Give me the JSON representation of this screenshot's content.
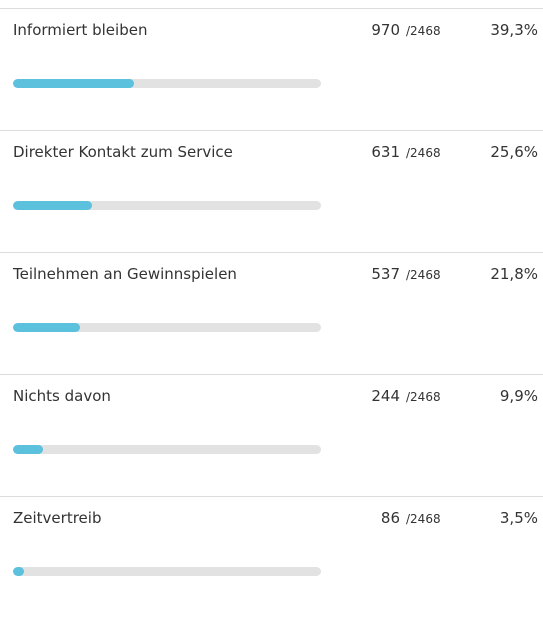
{
  "rows": [
    {
      "label": "Informiert bleiben",
      "count": 970,
      "total": {
        "value": 2468,
        "label": "/2468"
      },
      "percent": {
        "value": 39.3,
        "label": "39,3%"
      }
    },
    {
      "label": "Direkter Kontakt zum Service",
      "count": 631,
      "total": {
        "value": 2468,
        "label": "/2468"
      },
      "percent": {
        "value": 25.6,
        "label": "25,6%"
      }
    },
    {
      "label": "Teilnehmen an Gewinnspielen",
      "count": 537,
      "total": {
        "value": 2468,
        "label": "/2468"
      },
      "percent": {
        "value": 21.8,
        "label": "21,8%"
      }
    },
    {
      "label": "Nichts davon",
      "count": 244,
      "total": {
        "value": 2468,
        "label": "/2468"
      },
      "percent": {
        "value": 9.9,
        "label": "9,9%"
      }
    },
    {
      "label": "Zeitvertreib",
      "count": 86,
      "total": {
        "value": 2468,
        "label": "/2468"
      },
      "percent": {
        "value": 3.5,
        "label": "3,5%"
      }
    }
  ]
}
